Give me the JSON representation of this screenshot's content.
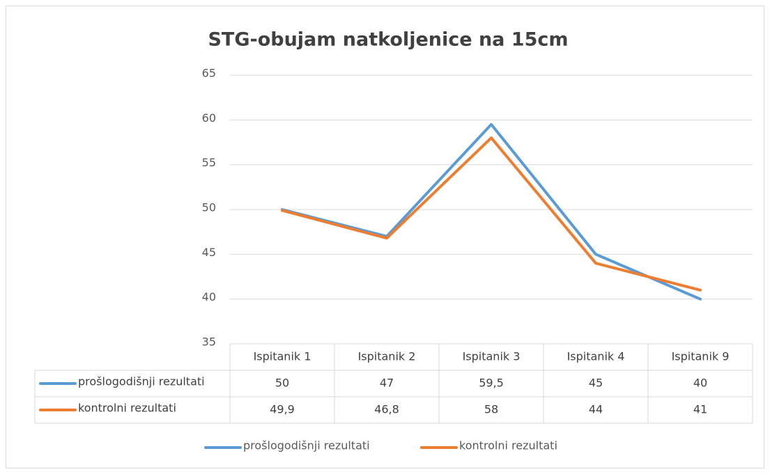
{
  "chart_data": {
    "type": "line",
    "title": "STG-obujam natkoljenice na 15cm",
    "categories": [
      "Ispitanik 1",
      "Ispitanik 2",
      "Ispitanik 3",
      "Ispitanik 4",
      "Ispitanik 9"
    ],
    "series": [
      {
        "name": "prošlogodišnji rezultati",
        "color": "#5b9bd5",
        "values": [
          50,
          47,
          59.5,
          45,
          40
        ],
        "value_labels": [
          "50",
          "47",
          "59,5",
          "45",
          "40"
        ]
      },
      {
        "name": "kontrolni rezultati",
        "color": "#ed7d31",
        "values": [
          49.9,
          46.8,
          58,
          44,
          41
        ],
        "value_labels": [
          "49,9",
          "46,8",
          "58",
          "44",
          "41"
        ]
      }
    ],
    "ylim": [
      35,
      65
    ],
    "yticks": [
      35,
      40,
      45,
      50,
      55,
      60,
      65
    ],
    "grid": true,
    "legend": "bottom"
  }
}
